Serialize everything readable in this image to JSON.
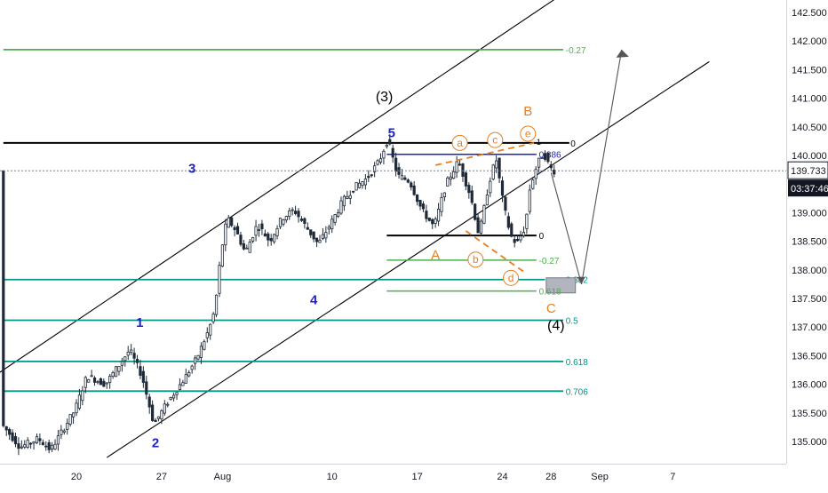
{
  "chart_data": {
    "type": "candlestick",
    "price_axis": {
      "ticks": [
        "142.500",
        "142.000",
        "141.500",
        "141.000",
        "140.500",
        "140.000",
        "139.500",
        "139.000",
        "138.500",
        "138.000",
        "137.500",
        "137.000",
        "136.500",
        "136.000",
        "135.500",
        "135.000"
      ],
      "range": [
        134.8,
        142.8
      ],
      "current_price": "139.733",
      "countdown": "03:37:46"
    },
    "time_axis": {
      "ticks": [
        {
          "label": "20",
          "t": 20
        },
        {
          "label": "27",
          "t": 27
        },
        {
          "label": "Aug",
          "t": 32
        },
        {
          "label": "10",
          "t": 41
        },
        {
          "label": "17",
          "t": 48
        },
        {
          "label": "24",
          "t": 55
        },
        {
          "label": "28",
          "t": 59
        },
        {
          "label": "Sep",
          "t": 63
        },
        {
          "label": "7",
          "t": 69
        }
      ],
      "range": [
        14.0,
        73.0
      ]
    },
    "fib_levels": [
      {
        "label": "-0.27",
        "price": 141.85,
        "color": "#4caf50"
      },
      {
        "label": "0.382",
        "price": 137.83,
        "color": "#009688"
      },
      {
        "label": "0.5",
        "price": 137.12,
        "color": "#009688"
      },
      {
        "label": "0.618",
        "price": 136.4,
        "color": "#009688"
      },
      {
        "label": "0.706",
        "price": 135.88,
        "color": "#009688"
      }
    ],
    "range_levels": [
      {
        "label": "0",
        "price": 140.22,
        "color": "#000000"
      },
      {
        "label": "0.886",
        "price": 140.02,
        "color": "#1e22c8"
      },
      {
        "label": "0",
        "price": 138.6,
        "color": "#000000"
      },
      {
        "label": "-0.27",
        "price": 138.17,
        "color": "#4caf50"
      },
      {
        "label": "0.618",
        "price": 137.63,
        "color": "#4caf50"
      }
    ],
    "wave_labels": {
      "blue": [
        {
          "text": "1",
          "t": 25.2,
          "price": 137.0
        },
        {
          "text": "2",
          "t": 26.5,
          "price": 134.9
        },
        {
          "text": "3",
          "t": 29.5,
          "price": 139.7
        },
        {
          "text": "4",
          "t": 39.5,
          "price": 137.4
        },
        {
          "text": "5",
          "t": 45.9,
          "price": 140.32
        }
      ],
      "black": [
        {
          "text": "(3)",
          "t": 45.3,
          "price": 140.95
        },
        {
          "text": "(4)",
          "t": 59.4,
          "price": 136.95
        }
      ],
      "orange": [
        {
          "text": "A",
          "t": 49.5,
          "price": 138.18
        },
        {
          "text": "B",
          "t": 57.1,
          "price": 140.7
        },
        {
          "text": "C",
          "t": 59.0,
          "price": 137.25
        }
      ],
      "circled": [
        {
          "text": "a",
          "t": 51.5,
          "price": 140.22
        },
        {
          "text": "b",
          "t": 52.8,
          "price": 138.18
        },
        {
          "text": "c",
          "t": 54.4,
          "price": 140.27
        },
        {
          "text": "d",
          "t": 55.7,
          "price": 137.86
        },
        {
          "text": "e",
          "t": 57.1,
          "price": 140.38
        }
      ]
    },
    "colors": {
      "up": "#26a69a",
      "down": "#ef5350",
      "candle": "#1f2a38",
      "wave_blue": "#1e22c8",
      "wave_orange": "#e67e22",
      "price_line": "#787b86"
    }
  }
}
